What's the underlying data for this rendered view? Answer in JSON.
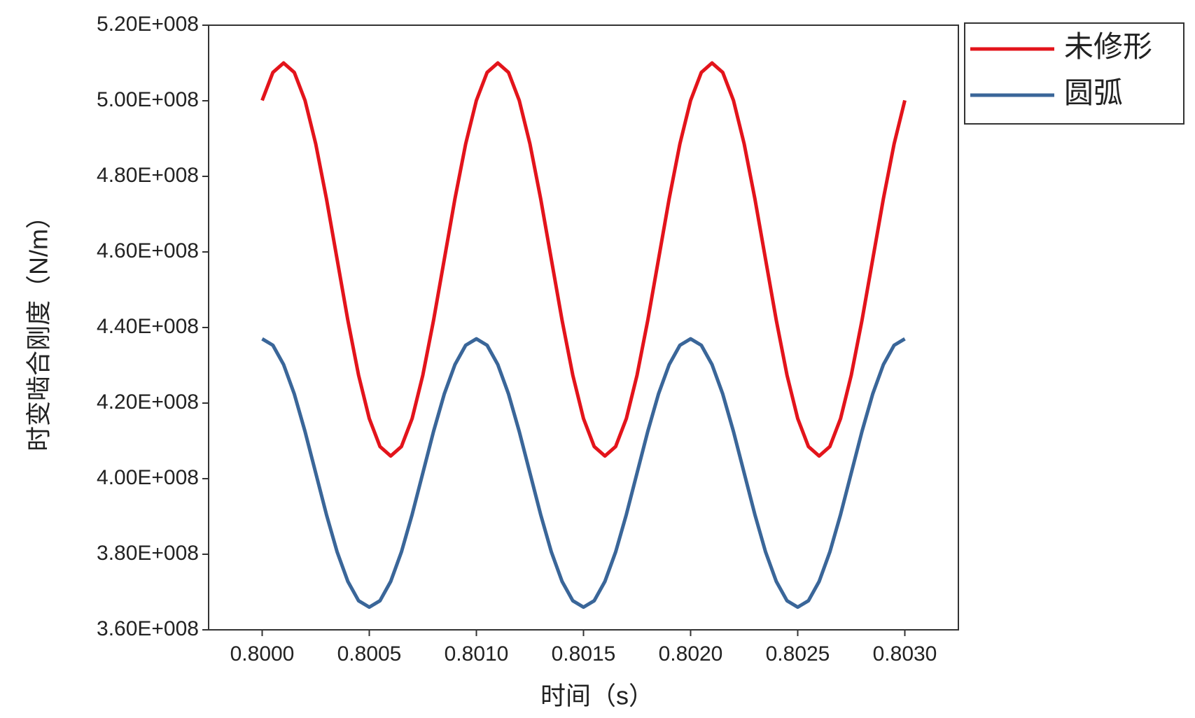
{
  "chart_data": {
    "type": "line",
    "x_label": "时间（s）",
    "y_label": "时变啮合刚度（N/m）",
    "x": [
      0.8,
      0.80005,
      0.8001,
      0.80015,
      0.8002,
      0.80025,
      0.8003,
      0.80035,
      0.8004,
      0.80045,
      0.8005,
      0.80055,
      0.8006,
      0.80065,
      0.8007,
      0.80075,
      0.8008,
      0.80085,
      0.8009,
      0.80095,
      0.801,
      0.80105,
      0.8011,
      0.80115,
      0.8012,
      0.80125,
      0.8013,
      0.80135,
      0.8014,
      0.80145,
      0.8015,
      0.80155,
      0.8016,
      0.80165,
      0.8017,
      0.80175,
      0.8018,
      0.80185,
      0.8019,
      0.80195,
      0.802,
      0.80205,
      0.8021,
      0.80215,
      0.8022,
      0.80225,
      0.8023,
      0.80235,
      0.8024,
      0.80245,
      0.8025,
      0.80255,
      0.8026,
      0.80265,
      0.8027,
      0.80275,
      0.8028,
      0.80285,
      0.8029,
      0.80295,
      0.803
    ],
    "series": [
      {
        "name": "未修形",
        "color": "#e3141b",
        "values": [
          500100000.0,
          507500000.0,
          510000000.0,
          507500000.0,
          500100000.0,
          488600000.0,
          474100000.0,
          458000000.0,
          441900000.0,
          427400000.0,
          415900000.0,
          408500000.0,
          406000000.0,
          408500000.0,
          415900000.0,
          427400000.0,
          441900000.0,
          458000000.0,
          474100000.0,
          488600000.0,
          500100000.0,
          507500000.0,
          510000000.0,
          507500000.0,
          500100000.0,
          488600000.0,
          474100000.0,
          458000000.0,
          441900000.0,
          427400000.0,
          415900000.0,
          408500000.0,
          406000000.0,
          408500000.0,
          415900000.0,
          427400000.0,
          441900000.0,
          458000000.0,
          474100000.0,
          488600000.0,
          500100000.0,
          507500000.0,
          510000000.0,
          507500000.0,
          500100000.0,
          488600000.0,
          474100000.0,
          458000000.0,
          441900000.0,
          427400000.0,
          415900000.0,
          408500000.0,
          406000000.0,
          408500000.0,
          415900000.0,
          427400000.0,
          441900000.0,
          458000000.0,
          474100000.0,
          488600000.0,
          500100000.0
        ]
      },
      {
        "name": "圆弧",
        "color": "#3a6699",
        "values": [
          437000000.0,
          435300000.0,
          430200000.0,
          422400000.0,
          412500000.0,
          401500000.0,
          390500000.0,
          380600000.0,
          372800000.0,
          367700000.0,
          366000000.0,
          367700000.0,
          372800000.0,
          380600000.0,
          390500000.0,
          401500000.0,
          412500000.0,
          422400000.0,
          430200000.0,
          435300000.0,
          437000000.0,
          435300000.0,
          430200000.0,
          422400000.0,
          412500000.0,
          401500000.0,
          390500000.0,
          380600000.0,
          372800000.0,
          367700000.0,
          366000000.0,
          367700000.0,
          372800000.0,
          380600000.0,
          390500000.0,
          401500000.0,
          412500000.0,
          422400000.0,
          430200000.0,
          435300000.0,
          437000000.0,
          435300000.0,
          430200000.0,
          422400000.0,
          412500000.0,
          401500000.0,
          390500000.0,
          380600000.0,
          372800000.0,
          367700000.0,
          366000000.0,
          367700000.0,
          372800000.0,
          380600000.0,
          390500000.0,
          401500000.0,
          412500000.0,
          422400000.0,
          430200000.0,
          435300000.0,
          437000000.0
        ]
      }
    ],
    "xlim": [
      0.79975,
      0.80325
    ],
    "ylim": [
      360000000.0,
      520000000.0
    ],
    "xticks": [
      {
        "value": 0.8,
        "label": "0.8000"
      },
      {
        "value": 0.8005,
        "label": "0.8005"
      },
      {
        "value": 0.801,
        "label": "0.8010"
      },
      {
        "value": 0.8015,
        "label": "0.8015"
      },
      {
        "value": 0.802,
        "label": "0.8020"
      },
      {
        "value": 0.8025,
        "label": "0.8025"
      },
      {
        "value": 0.803,
        "label": "0.8030"
      }
    ],
    "yticks": [
      {
        "value": 360000000.0,
        "label": "3.60E+008"
      },
      {
        "value": 380000000.0,
        "label": "3.80E+008"
      },
      {
        "value": 400000000.0,
        "label": "4.00E+008"
      },
      {
        "value": 420000000.0,
        "label": "4.20E+008"
      },
      {
        "value": 440000000.0,
        "label": "4.40E+008"
      },
      {
        "value": 460000000.0,
        "label": "4.60E+008"
      },
      {
        "value": 480000000.0,
        "label": "4.80E+008"
      },
      {
        "value": 500000000.0,
        "label": "5.00E+008"
      },
      {
        "value": 520000000.0,
        "label": "5.20E+008"
      }
    ],
    "grid": false,
    "legend": "outside-top-right"
  }
}
